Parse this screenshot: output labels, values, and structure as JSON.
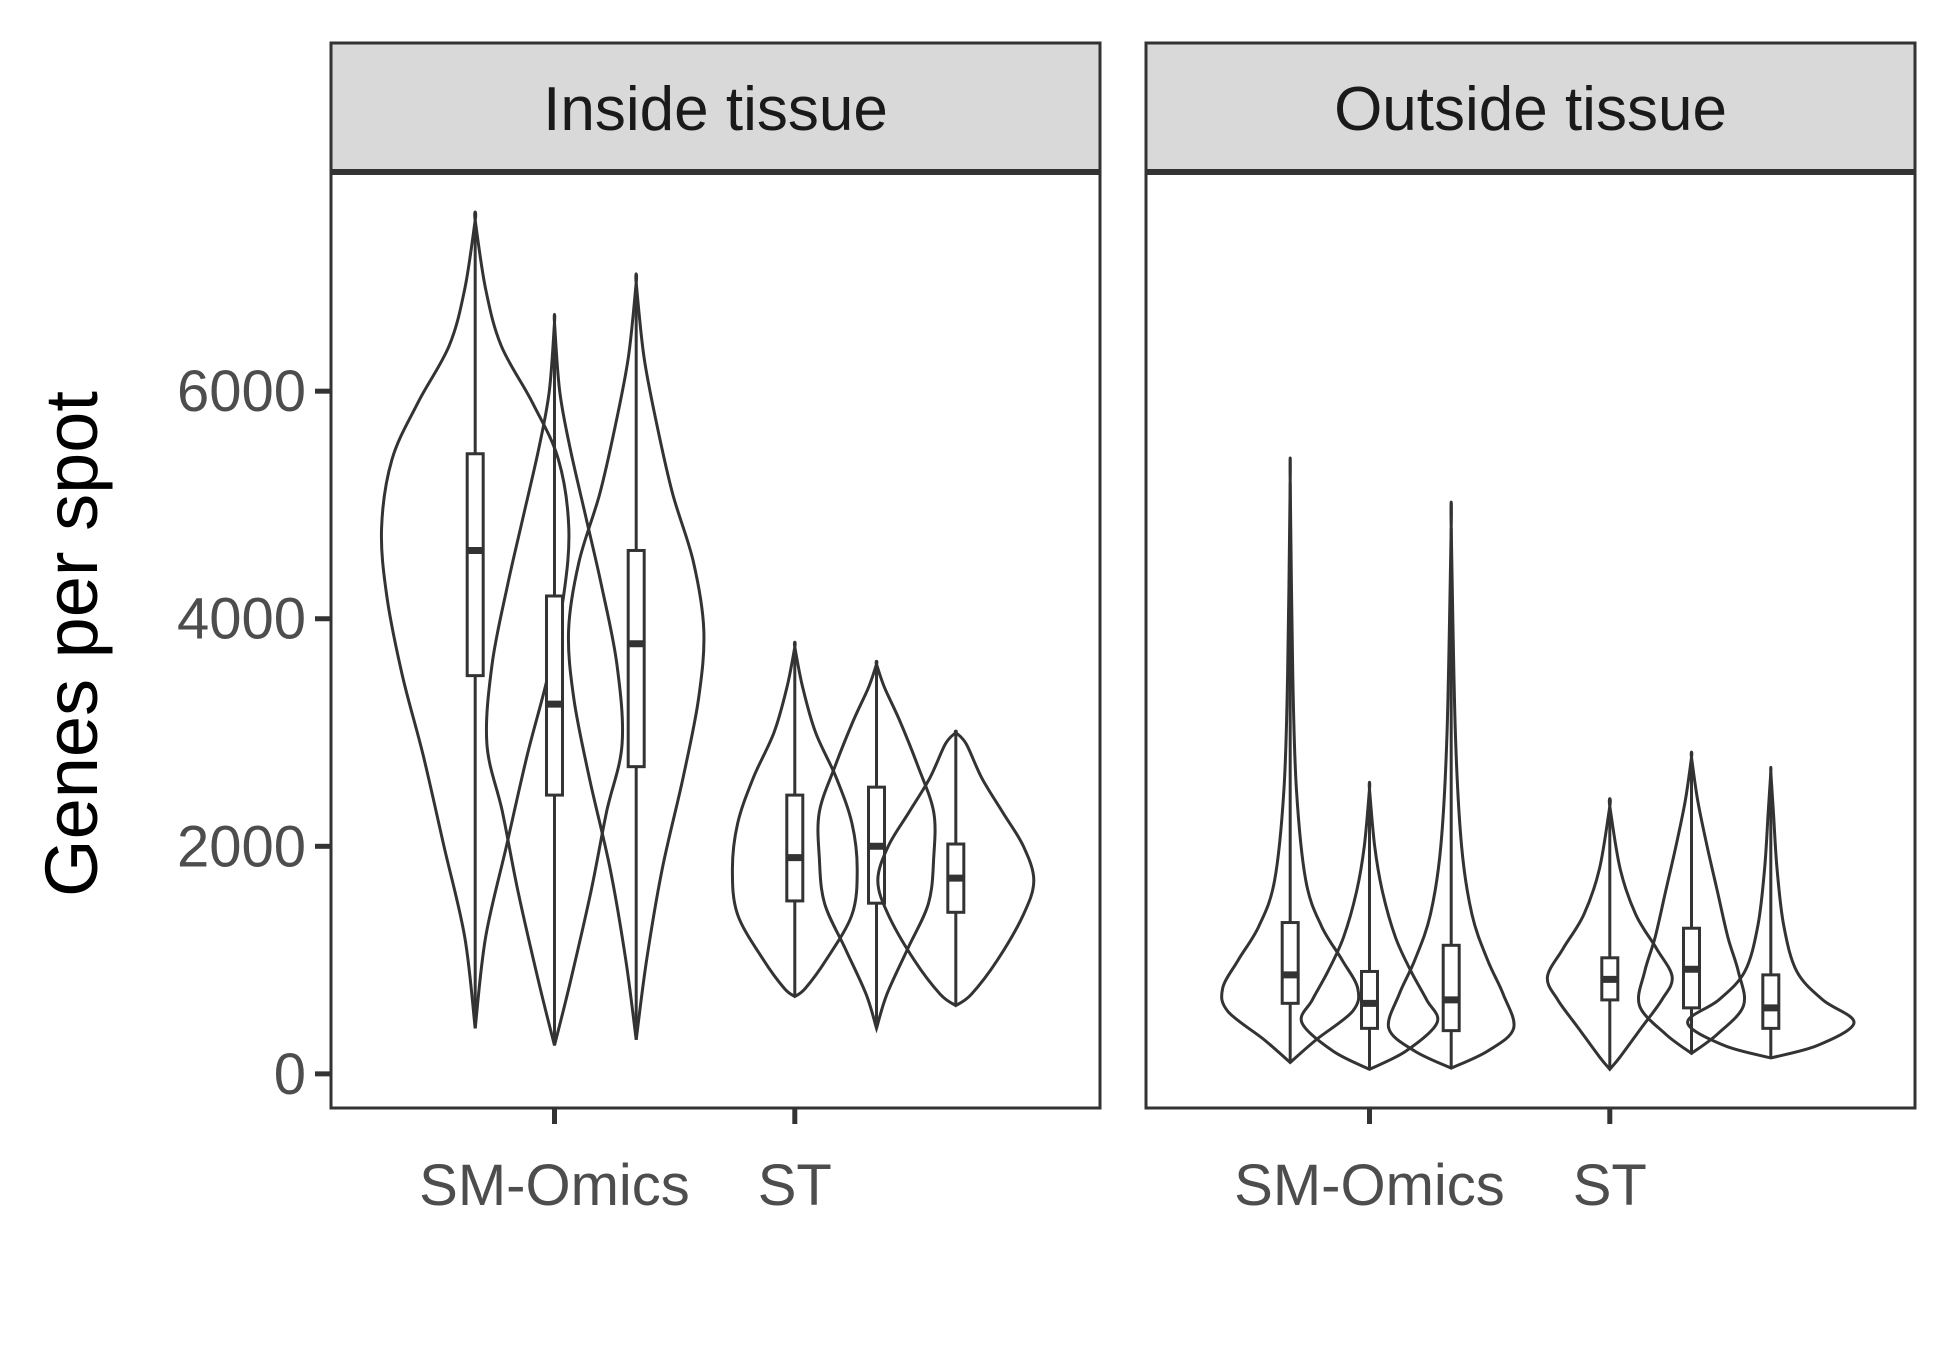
{
  "chart_data": {
    "type": "violin",
    "ylabel": "Genes per spot",
    "ylim": [
      -300,
      7900
    ],
    "yticks": [
      0,
      2000,
      4000,
      6000
    ],
    "categories": [
      "SM-Omics",
      "ST"
    ],
    "grid": false,
    "panels": [
      {
        "title": "Inside tissue",
        "violins": [
          {
            "category": "SM-Omics",
            "x": 1.0,
            "min": 400,
            "max": 7500,
            "q1": 3500,
            "median": 4600,
            "q3": 5450,
            "density": [
              [
                400,
                0.0
              ],
              [
                1200,
                0.02
              ],
              [
                2000,
                0.06
              ],
              [
                2800,
                0.1
              ],
              [
                3500,
                0.14
              ],
              [
                4200,
                0.17
              ],
              [
                4800,
                0.18
              ],
              [
                5400,
                0.16
              ],
              [
                5900,
                0.11
              ],
              [
                6400,
                0.05
              ],
              [
                6900,
                0.02
              ],
              [
                7500,
                0.0
              ]
            ]
          },
          {
            "category": "SM-Omics",
            "x": 1.33,
            "min": 250,
            "max": 6600,
            "q1": 2450,
            "median": 3250,
            "q3": 4200,
            "density": [
              [
                250,
                0.0
              ],
              [
                800,
                0.03
              ],
              [
                1600,
                0.07
              ],
              [
                2300,
                0.1
              ],
              [
                2900,
                0.13
              ],
              [
                3600,
                0.12
              ],
              [
                4300,
                0.09
              ],
              [
                4900,
                0.06
              ],
              [
                5500,
                0.03
              ],
              [
                6000,
                0.01
              ],
              [
                6600,
                0.0
              ]
            ]
          },
          {
            "category": "SM-Omics",
            "x": 1.67,
            "min": 300,
            "max": 6950,
            "q1": 2700,
            "median": 3780,
            "q3": 4600,
            "density": [
              [
                300,
                0.0
              ],
              [
                1000,
                0.02
              ],
              [
                1800,
                0.05
              ],
              [
                2600,
                0.09
              ],
              [
                3300,
                0.12
              ],
              [
                3900,
                0.13
              ],
              [
                4500,
                0.11
              ],
              [
                5100,
                0.07
              ],
              [
                5700,
                0.04
              ],
              [
                6300,
                0.015
              ],
              [
                6950,
                0.0
              ]
            ]
          },
          {
            "category": "ST",
            "x": 2.33,
            "min": 680,
            "max": 3750,
            "q1": 1520,
            "median": 1900,
            "q3": 2450,
            "density": [
              [
                680,
                0.0
              ],
              [
                750,
                0.02
              ],
              [
                1000,
                0.06
              ],
              [
                1400,
                0.11
              ],
              [
                1800,
                0.12
              ],
              [
                2200,
                0.11
              ],
              [
                2600,
                0.08
              ],
              [
                3000,
                0.04
              ],
              [
                3400,
                0.015
              ],
              [
                3750,
                0.0
              ]
            ]
          },
          {
            "category": "ST",
            "x": 2.67,
            "min": 400,
            "max": 3600,
            "q1": 1500,
            "median": 2000,
            "q3": 2520,
            "density": [
              [
                400,
                0.0
              ],
              [
                700,
                0.02
              ],
              [
                1100,
                0.06
              ],
              [
                1500,
                0.1
              ],
              [
                1900,
                0.11
              ],
              [
                2300,
                0.11
              ],
              [
                2700,
                0.08
              ],
              [
                3100,
                0.045
              ],
              [
                3400,
                0.015
              ],
              [
                3600,
                0.0
              ]
            ]
          },
          {
            "category": "ST",
            "x": 3.0,
            "min": 600,
            "max": 3000,
            "q1": 1420,
            "median": 1720,
            "q3": 2020,
            "density": [
              [
                600,
                0.0
              ],
              [
                700,
                0.03
              ],
              [
                1000,
                0.08
              ],
              [
                1400,
                0.13
              ],
              [
                1700,
                0.15
              ],
              [
                2000,
                0.13
              ],
              [
                2300,
                0.09
              ],
              [
                2600,
                0.05
              ],
              [
                2900,
                0.02
              ],
              [
                3000,
                0.0
              ]
            ]
          }
        ]
      },
      {
        "title": "Outside tissue",
        "violins": [
          {
            "category": "SM-Omics",
            "x": 1.0,
            "min": 100,
            "max": 5200,
            "q1": 620,
            "median": 870,
            "q3": 1330,
            "density": [
              [
                100,
                0.0
              ],
              [
                300,
                0.05
              ],
              [
                550,
                0.12
              ],
              [
                750,
                0.13
              ],
              [
                1000,
                0.1
              ],
              [
                1300,
                0.06
              ],
              [
                1700,
                0.03
              ],
              [
                2500,
                0.012
              ],
              [
                3500,
                0.005
              ],
              [
                5200,
                0.0
              ]
            ]
          },
          {
            "category": "SM-Omics",
            "x": 1.33,
            "min": 40,
            "max": 2500,
            "q1": 400,
            "median": 620,
            "q3": 900,
            "density": [
              [
                40,
                0.0
              ],
              [
                200,
                0.07
              ],
              [
                450,
                0.13
              ],
              [
                650,
                0.11
              ],
              [
                900,
                0.08
              ],
              [
                1200,
                0.05
              ],
              [
                1600,
                0.025
              ],
              [
                2000,
                0.01
              ],
              [
                2500,
                0.0
              ]
            ]
          },
          {
            "category": "SM-Omics",
            "x": 1.67,
            "min": 50,
            "max": 4800,
            "q1": 380,
            "median": 650,
            "q3": 1130,
            "density": [
              [
                50,
                0.0
              ],
              [
                200,
                0.07
              ],
              [
                400,
                0.12
              ],
              [
                700,
                0.1
              ],
              [
                1000,
                0.07
              ],
              [
                1400,
                0.04
              ],
              [
                2000,
                0.02
              ],
              [
                3000,
                0.008
              ],
              [
                4800,
                0.0
              ]
            ]
          },
          {
            "category": "ST",
            "x": 2.33,
            "min": 40,
            "max": 2350,
            "q1": 650,
            "median": 830,
            "q3": 1020,
            "density": [
              [
                40,
                0.0
              ],
              [
                150,
                0.02
              ],
              [
                400,
                0.06
              ],
              [
                650,
                0.1
              ],
              [
                850,
                0.12
              ],
              [
                1100,
                0.09
              ],
              [
                1400,
                0.05
              ],
              [
                1800,
                0.02
              ],
              [
                2350,
                0.0
              ]
            ]
          },
          {
            "category": "ST",
            "x": 2.67,
            "min": 180,
            "max": 2780,
            "q1": 580,
            "median": 920,
            "q3": 1280,
            "density": [
              [
                180,
                0.0
              ],
              [
                350,
                0.05
              ],
              [
                600,
                0.1
              ],
              [
                900,
                0.09
              ],
              [
                1200,
                0.07
              ],
              [
                1600,
                0.05
              ],
              [
                2000,
                0.03
              ],
              [
                2400,
                0.012
              ],
              [
                2780,
                0.0
              ]
            ]
          },
          {
            "category": "ST",
            "x": 3.0,
            "min": 140,
            "max": 2650,
            "q1": 400,
            "median": 580,
            "q3": 870,
            "density": [
              [
                140,
                0.0
              ],
              [
                250,
                0.09
              ],
              [
                450,
                0.16
              ],
              [
                650,
                0.1
              ],
              [
                900,
                0.05
              ],
              [
                1300,
                0.025
              ],
              [
                1800,
                0.012
              ],
              [
                2300,
                0.005
              ],
              [
                2650,
                0.0
              ]
            ]
          }
        ]
      }
    ]
  }
}
